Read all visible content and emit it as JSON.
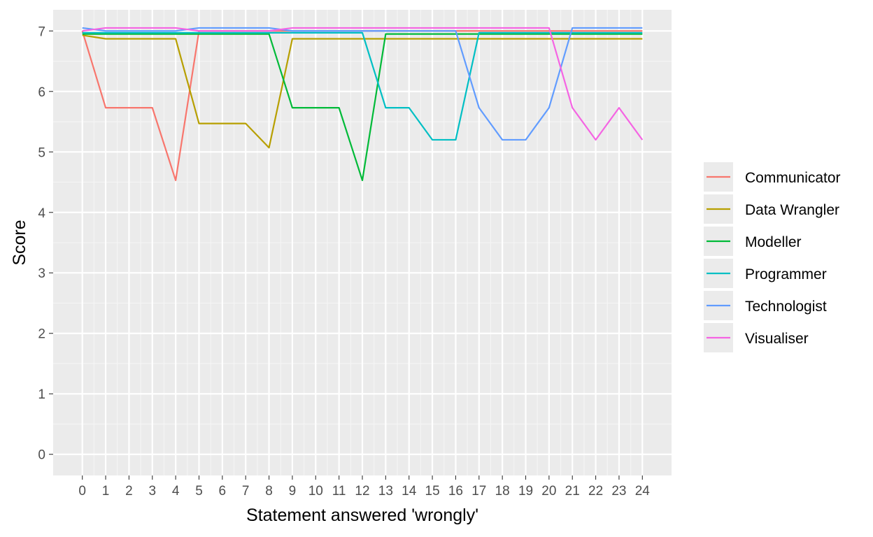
{
  "chart_data": {
    "type": "line",
    "title": "",
    "xlabel": "Statement answered 'wrongly'",
    "ylabel": "Score",
    "x": [
      0,
      1,
      2,
      3,
      4,
      5,
      6,
      7,
      8,
      9,
      10,
      11,
      12,
      13,
      14,
      15,
      16,
      17,
      18,
      19,
      20,
      21,
      22,
      23,
      24
    ],
    "xlim": [
      -1.25,
      25.25
    ],
    "ylim": [
      -0.35,
      7.35
    ],
    "yticks": [
      0,
      1,
      2,
      3,
      4,
      5,
      6,
      7
    ],
    "grid": true,
    "legend_position": "right",
    "series": [
      {
        "name": "Communicator",
        "color": "#F8766D",
        "values": [
          7.0,
          5.73,
          5.73,
          5.73,
          4.53,
          7.0,
          7.0,
          7.0,
          7.0,
          7.0,
          7.0,
          7.0,
          7.0,
          7.0,
          7.0,
          7.0,
          7.0,
          7.0,
          7.0,
          7.0,
          7.0,
          7.0,
          7.0,
          7.0,
          7.0
        ]
      },
      {
        "name": "Data Wrangler",
        "color": "#B79F00",
        "values": [
          6.93,
          6.87,
          6.87,
          6.87,
          6.87,
          5.47,
          5.47,
          5.47,
          5.07,
          6.87,
          6.87,
          6.87,
          6.87,
          6.87,
          6.87,
          6.87,
          6.87,
          6.87,
          6.87,
          6.87,
          6.87,
          6.87,
          6.87,
          6.87,
          6.87
        ]
      },
      {
        "name": "Modeller",
        "color": "#00BA38",
        "values": [
          6.95,
          6.95,
          6.95,
          6.95,
          6.95,
          6.95,
          6.95,
          6.95,
          6.95,
          5.73,
          5.73,
          5.73,
          4.53,
          6.95,
          6.95,
          6.95,
          6.95,
          6.95,
          6.95,
          6.95,
          6.95,
          6.95,
          6.95,
          6.95,
          6.95
        ]
      },
      {
        "name": "Programmer",
        "color": "#00BFC4",
        "values": [
          6.97,
          6.97,
          6.97,
          6.97,
          6.97,
          6.97,
          6.97,
          6.97,
          6.97,
          6.97,
          6.97,
          6.97,
          6.97,
          5.73,
          5.73,
          5.2,
          5.2,
          6.97,
          6.97,
          6.97,
          6.97,
          6.97,
          6.97,
          6.97,
          6.97
        ]
      },
      {
        "name": "Technologist",
        "color": "#619CFF",
        "values": [
          7.05,
          7.0,
          7.0,
          7.0,
          7.0,
          7.05,
          7.05,
          7.05,
          7.05,
          7.0,
          7.0,
          7.0,
          7.0,
          7.0,
          7.0,
          7.0,
          7.0,
          5.73,
          5.2,
          5.2,
          5.73,
          7.05,
          7.05,
          7.05,
          7.05
        ]
      },
      {
        "name": "Visualiser",
        "color": "#F564E3",
        "values": [
          7.0,
          7.05,
          7.05,
          7.05,
          7.05,
          7.0,
          7.0,
          7.0,
          7.0,
          7.05,
          7.05,
          7.05,
          7.05,
          7.05,
          7.05,
          7.05,
          7.05,
          7.05,
          7.05,
          7.05,
          7.05,
          5.73,
          5.2,
          5.73,
          5.2
        ]
      }
    ]
  }
}
